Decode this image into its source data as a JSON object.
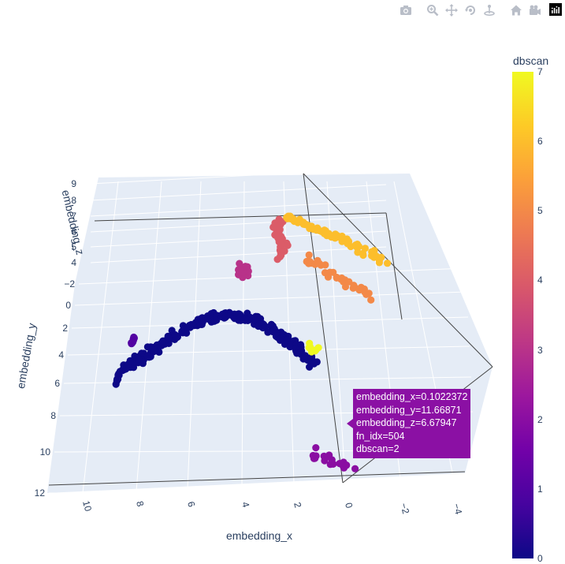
{
  "modebar": {
    "buttons": [
      {
        "icon": "camera-icon"
      },
      {
        "icon": "zoom-icon"
      },
      {
        "icon": "pan-icon"
      },
      {
        "icon": "orbit-rotation-icon"
      },
      {
        "icon": "turntable-rotation-icon"
      },
      {
        "icon": "home-icon"
      },
      {
        "icon": "camera-last-save-icon"
      }
    ],
    "logo_icon": "plotly-logo-icon"
  },
  "colorscale": [
    "#0d0887",
    "#46039f",
    "#7201a8",
    "#9c179e",
    "#bd3786",
    "#d8576b",
    "#ed7953",
    "#fb9f3a",
    "#fdca26",
    "#f0f921"
  ],
  "colorbar": {
    "title": "dbscan",
    "ticks": [
      "0",
      "1",
      "2",
      "3",
      "4",
      "5",
      "6",
      "7"
    ],
    "range": [
      0,
      7
    ]
  },
  "chart_data": {
    "type": "scatter",
    "subtype": "scatter3d",
    "title": "",
    "xlabel": "embedding_x",
    "ylabel": "embedding_y",
    "zlabel": "embedding_z",
    "x_ticks": [
      "10",
      "8",
      "6",
      "4",
      "2",
      "0",
      "−2",
      "−4"
    ],
    "y_ticks": [
      "−2",
      "0",
      "2",
      "4",
      "6",
      "8",
      "10",
      "12"
    ],
    "z_ticks": [
      "4",
      "5",
      "6",
      "7",
      "8",
      "9"
    ],
    "color_by": "dbscan",
    "clusters": [
      {
        "dbscan": 0,
        "approx_points": 260,
        "approx_x_range": [
          1.5,
          10.5
        ],
        "approx_y_range": [
          3.5,
          7.5
        ],
        "approx_z_range": [
          4.5,
          6.5
        ]
      },
      {
        "dbscan": 1,
        "approx_points": 12,
        "approx_x_range": [
          10.3,
          10.8
        ],
        "approx_y_range": [
          3.8,
          4.2
        ],
        "approx_z_range": [
          5.0,
          5.5
        ]
      },
      {
        "dbscan": 2,
        "approx_points": 20,
        "approx_x_range": [
          -0.5,
          1.5
        ],
        "approx_y_range": [
          11.0,
          12.0
        ],
        "approx_z_range": [
          6.3,
          6.8
        ]
      },
      {
        "dbscan": 3,
        "approx_points": 14,
        "approx_x_range": [
          5.3,
          5.6
        ],
        "approx_y_range": [
          -1.5,
          -0.5
        ],
        "approx_z_range": [
          5.0,
          6.5
        ]
      },
      {
        "dbscan": 4,
        "approx_points": 30,
        "approx_x_range": [
          3.0,
          4.0
        ],
        "approx_y_range": [
          -4.0,
          -2.0
        ],
        "approx_z_range": [
          6.0,
          8.5
        ]
      },
      {
        "dbscan": 5,
        "approx_points": 35,
        "approx_x_range": [
          -2.0,
          2.0
        ],
        "approx_y_range": [
          -2.0,
          1.0
        ],
        "approx_z_range": [
          5.0,
          6.5
        ]
      },
      {
        "dbscan": 6,
        "approx_points": 70,
        "approx_x_range": [
          -2.5,
          3.5
        ],
        "approx_y_range": [
          -4.0,
          -1.0
        ],
        "approx_z_range": [
          6.5,
          8.5
        ]
      },
      {
        "dbscan": 7,
        "approx_points": 8,
        "approx_x_range": [
          1.0,
          1.5
        ],
        "approx_y_range": [
          5.0,
          5.5
        ],
        "approx_z_range": [
          6.0,
          6.3
        ]
      }
    ],
    "hover": {
      "lines": [
        "embedding_x=0.1022372",
        "embedding_y=11.66871",
        "embedding_z=6.67947",
        "fn_idx=504",
        "dbscan=2"
      ],
      "color": "#8b10a4"
    }
  }
}
